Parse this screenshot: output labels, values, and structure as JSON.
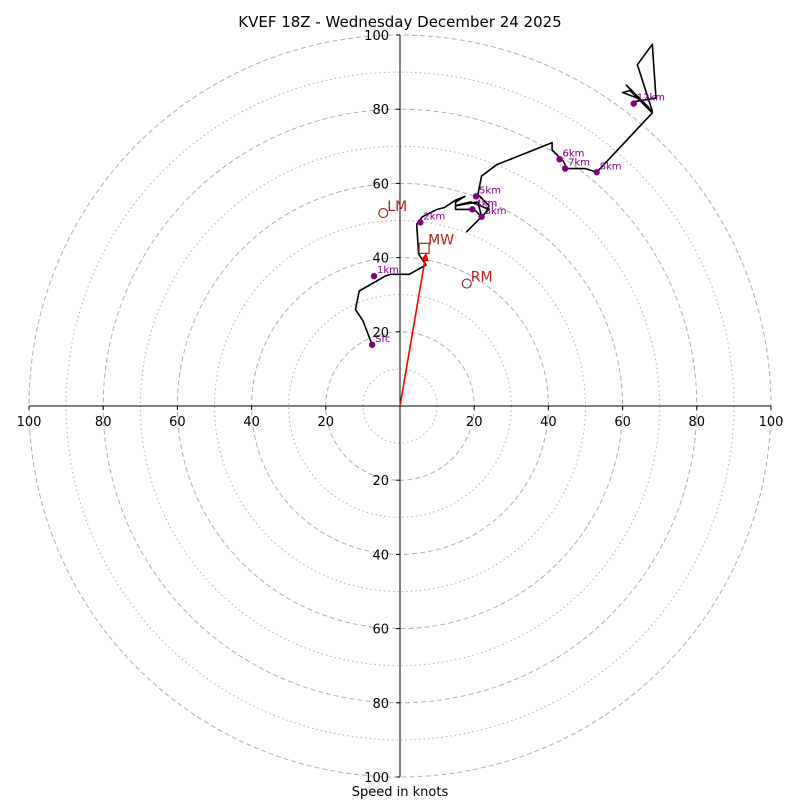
{
  "chart_data": {
    "type": "hodograph",
    "title": "KVEF 18Z - Wednesday December 24 2025",
    "xlabel": "Speed in knots",
    "xlim": [
      -100,
      100
    ],
    "ylim": [
      -100,
      100
    ],
    "ring_major": [
      20,
      40,
      60,
      80,
      100
    ],
    "ring_minor": [
      10,
      30,
      50,
      70,
      90
    ],
    "x_ticks": [
      {
        "v": -100,
        "label": "100"
      },
      {
        "v": -80,
        "label": "80"
      },
      {
        "v": -60,
        "label": "60"
      },
      {
        "v": -40,
        "label": "40"
      },
      {
        "v": -20,
        "label": "20"
      },
      {
        "v": 20,
        "label": "20"
      },
      {
        "v": 40,
        "label": "40"
      },
      {
        "v": 60,
        "label": "60"
      },
      {
        "v": 80,
        "label": "80"
      },
      {
        "v": 100,
        "label": "100"
      }
    ],
    "y_ticks": [
      {
        "v": 100,
        "label": "100"
      },
      {
        "v": 80,
        "label": "80"
      },
      {
        "v": 60,
        "label": "60"
      },
      {
        "v": 40,
        "label": "40"
      },
      {
        "v": 20,
        "label": "20"
      },
      {
        "v": -20,
        "label": "20"
      },
      {
        "v": -40,
        "label": "40"
      },
      {
        "v": -60,
        "label": "60"
      },
      {
        "v": -80,
        "label": "80"
      },
      {
        "v": -100,
        "label": "100"
      }
    ],
    "trace": [
      [
        -7.5,
        16.5
      ],
      [
        -10,
        23
      ],
      [
        -12,
        26
      ],
      [
        -11,
        31
      ],
      [
        -4,
        35
      ],
      [
        -2.5,
        35.5
      ],
      [
        2.5,
        35.5
      ],
      [
        7,
        38
      ],
      [
        5,
        41
      ],
      [
        4.5,
        49
      ],
      [
        6,
        51
      ],
      [
        10,
        53
      ],
      [
        12,
        53.5
      ],
      [
        15,
        55.5
      ],
      [
        17.5,
        56.5
      ],
      [
        15,
        55
      ],
      [
        15,
        53
      ],
      [
        20,
        53
      ],
      [
        22,
        51
      ],
      [
        24,
        53
      ],
      [
        19,
        55
      ],
      [
        15,
        54
      ],
      [
        18,
        54.5
      ],
      [
        21,
        55
      ],
      [
        22,
        51
      ],
      [
        18,
        47
      ],
      [
        20,
        49
      ],
      [
        23,
        52
      ],
      [
        24,
        54
      ],
      [
        21,
        57
      ],
      [
        22,
        62
      ],
      [
        26,
        65
      ],
      [
        41,
        71
      ],
      [
        41,
        69
      ],
      [
        44,
        66
      ],
      [
        45,
        64
      ],
      [
        50,
        64
      ],
      [
        53,
        63
      ],
      [
        68,
        79
      ],
      [
        62,
        85
      ],
      [
        60,
        84.5
      ],
      [
        64,
        83
      ],
      [
        67,
        80.5
      ],
      [
        61,
        86.5
      ],
      [
        66,
        81
      ],
      [
        68,
        79.5
      ],
      [
        64,
        92
      ],
      [
        68,
        97.5
      ],
      [
        69,
        83
      ],
      [
        63,
        82
      ]
    ],
    "height_points": [
      {
        "label": "Sfc",
        "u": -7.5,
        "v": 16.5
      },
      {
        "label": "1km",
        "u": -7,
        "v": 35
      },
      {
        "label": "2km",
        "u": 5.5,
        "v": 49.5
      },
      {
        "label": "3km",
        "u": 22,
        "v": 51
      },
      {
        "label": "4km",
        "u": 19.5,
        "v": 53
      },
      {
        "label": "5km",
        "u": 20.5,
        "v": 56.5
      },
      {
        "label": "6km",
        "u": 43,
        "v": 66.5
      },
      {
        "label": "7km",
        "u": 44.5,
        "v": 64
      },
      {
        "label": "8km",
        "u": 53,
        "v": 63
      },
      {
        "label": "12km",
        "u": 63,
        "v": 81.5
      }
    ],
    "storm_motion": {
      "LM": {
        "label": "LM",
        "u": -4.5,
        "v": 52
      },
      "RM": {
        "label": "RM",
        "u": 18,
        "v": 33
      },
      "MW": {
        "label": "MW",
        "u": 6.5,
        "v": 42.5
      }
    },
    "shear_vector": {
      "u": 7,
      "v": 41
    },
    "colors": {
      "trace": "#000000",
      "height_marker": "#800080",
      "storm_marker": "#b22222",
      "shear_arrow": "#ff0000",
      "grid": "#b0b0b0",
      "axis": "#000000"
    }
  }
}
